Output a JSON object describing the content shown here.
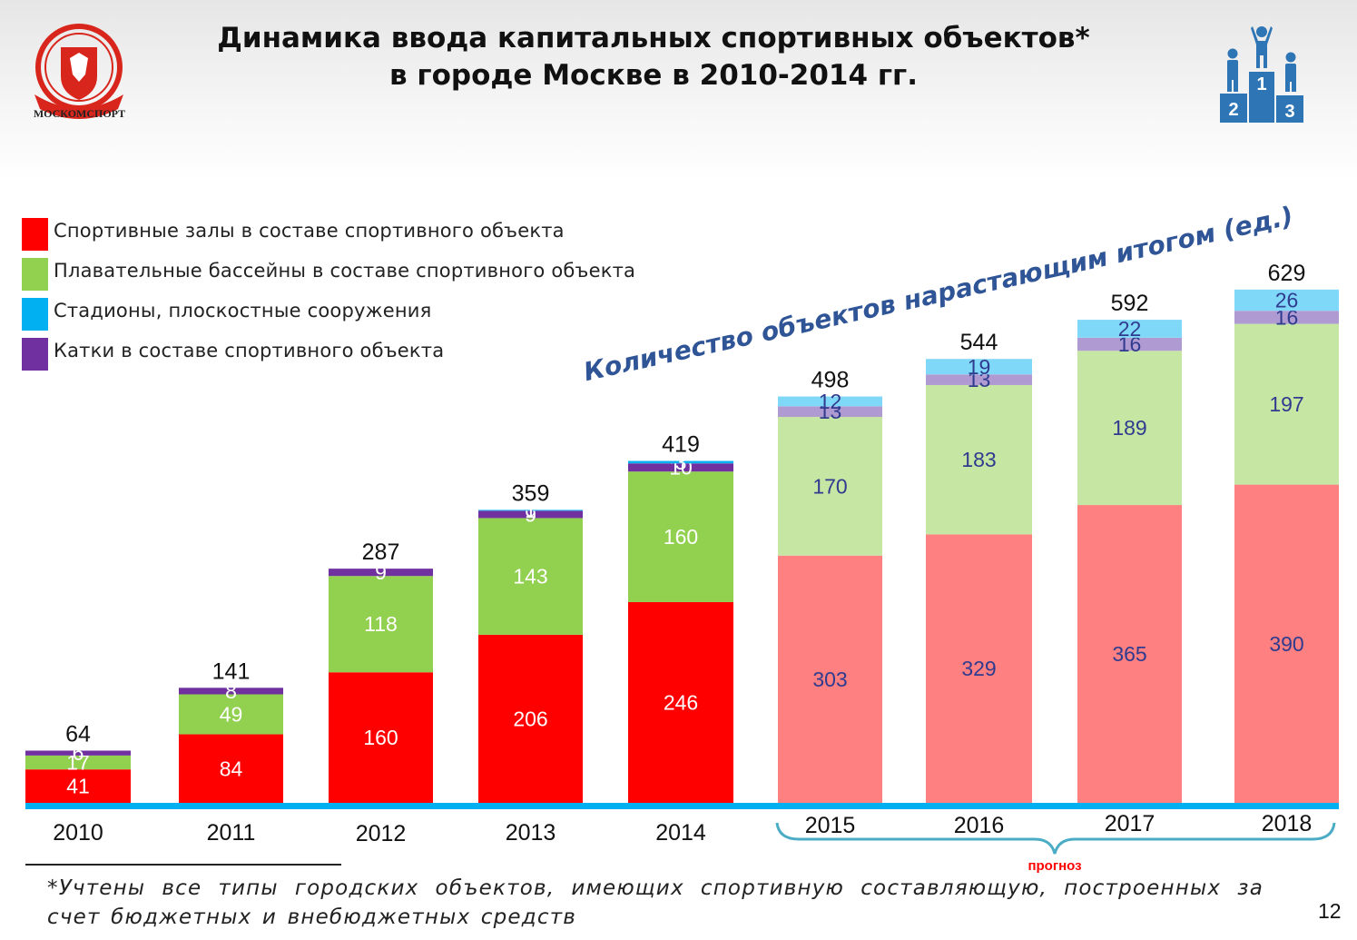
{
  "header": {
    "title_line1": "Динамика ввода капитальных спортивных объектов*",
    "title_line2": "в городе Москве  в 2010-2014 гг.",
    "logo_text": "МОСКОМСПОРТ",
    "podium_places": [
      "2",
      "1",
      "3"
    ]
  },
  "colors": {
    "halls": "#ff0000",
    "pools": "#92d050",
    "stadiums": "#00b0f0",
    "rinks": "#7030a0",
    "halls_forecast": "#ff8080",
    "pools_forecast": "#c6e6a4",
    "stadiums_forecast": "#80d8f8",
    "rinks_forecast": "#b09ad2",
    "axis_line": "#00b0f0",
    "forecast_brace": "#4bacc6",
    "forecast_text": "#ff0000",
    "diagonal_text": "#2f5597",
    "podium": "#2e75b6",
    "logo_red": "#d9261c"
  },
  "annotation": "Количество объектов нарастающим итогом (ед.)",
  "forecast_label": "прогноз",
  "footnote": "*Учтены все типы городских объектов, имеющих спортивную составляющую, построенных за счет бюджетных и внебюджетных средств",
  "page_number": "12",
  "chart_data": {
    "type": "bar",
    "stacked": true,
    "categories": [
      "2010",
      "2011",
      "2012",
      "2013",
      "2014",
      "2015",
      "2016",
      "2017",
      "2018"
    ],
    "forecast_categories": [
      "2015",
      "2016",
      "2017",
      "2018"
    ],
    "series": [
      {
        "key": "halls",
        "name": "Спортивные залы в составе спортивного объекта",
        "values": [
          41,
          84,
          160,
          206,
          246,
          303,
          329,
          365,
          390
        ]
      },
      {
        "key": "pools",
        "name": "Плавательные бассейны в составе спортивного объекта",
        "values": [
          17,
          49,
          118,
          143,
          160,
          170,
          183,
          189,
          197
        ]
      },
      {
        "key": "rinks",
        "name": "Катки в составе спортивного объекта",
        "values": [
          6,
          8,
          9,
          9,
          10,
          13,
          13,
          16,
          16
        ]
      },
      {
        "key": "stadiums",
        "name": "Стадионы, плоскостные сооружения",
        "values": [
          0,
          0,
          0,
          1,
          3,
          12,
          19,
          22,
          26
        ]
      }
    ],
    "totals": [
      64,
      141,
      287,
      359,
      419,
      498,
      544,
      592,
      629
    ],
    "legend_order": [
      "halls",
      "pools",
      "stadiums",
      "rinks"
    ],
    "legend_position": "top-left",
    "grid": false
  }
}
